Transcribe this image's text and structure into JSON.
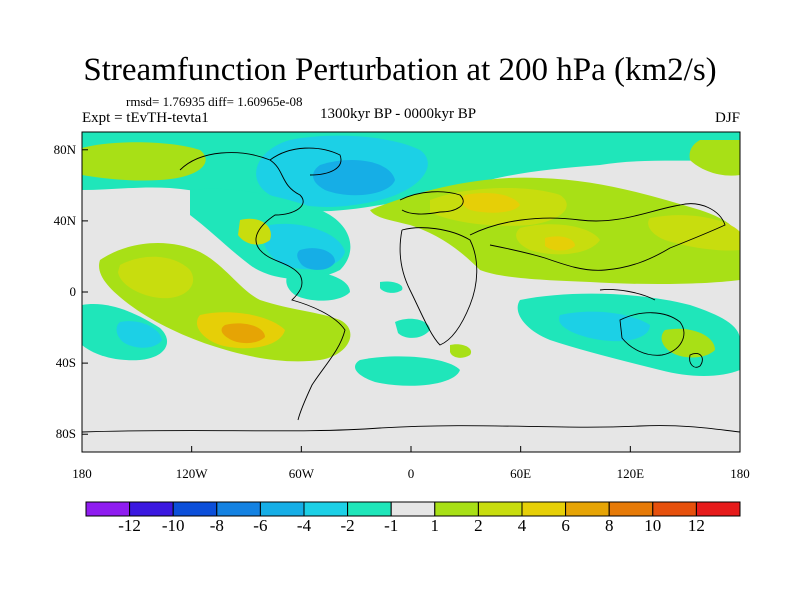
{
  "title": "Streamfunction Perturbation at 200 hPa (km2/s)",
  "stats": "rmsd= 1.76935 diff= 1.60965e-08",
  "experiment": "Expt = tEvTH-tevta1",
  "period": "1300kyr BP - 0000kyr BP",
  "season": "DJF",
  "x_ticks": [
    "180",
    "120W",
    "60W",
    "0",
    "60E",
    "120E",
    "180"
  ],
  "y_ticks": [
    "80N",
    "40N",
    "0",
    "40S",
    "80S"
  ],
  "colorbar": {
    "colors": [
      "#8f1cf0",
      "#3b18e0",
      "#0c4fd9",
      "#1482e2",
      "#16aee6",
      "#1cd0e6",
      "#1fe6ba",
      "#e6e6e6",
      "#a8e016",
      "#c8dd0e",
      "#e6cf07",
      "#e6a405",
      "#e67a07",
      "#e6500c",
      "#e61b1b"
    ],
    "labels": [
      "-12",
      "-10",
      "-8",
      "-6",
      "-4",
      "-2",
      "-1",
      "1",
      "2",
      "4",
      "6",
      "8",
      "10",
      "12"
    ]
  },
  "map": {
    "background": "#e6e6e6",
    "coastline_color": "#000000",
    "features": [
      "Arctic negative region",
      "North Atlantic negative region",
      "Eurasian positive region",
      "tropical Pacific positive band",
      "South Pacific negative/positive dipole",
      "Indian Ocean and Australian negative region",
      "Southern Ocean neutral"
    ]
  }
}
